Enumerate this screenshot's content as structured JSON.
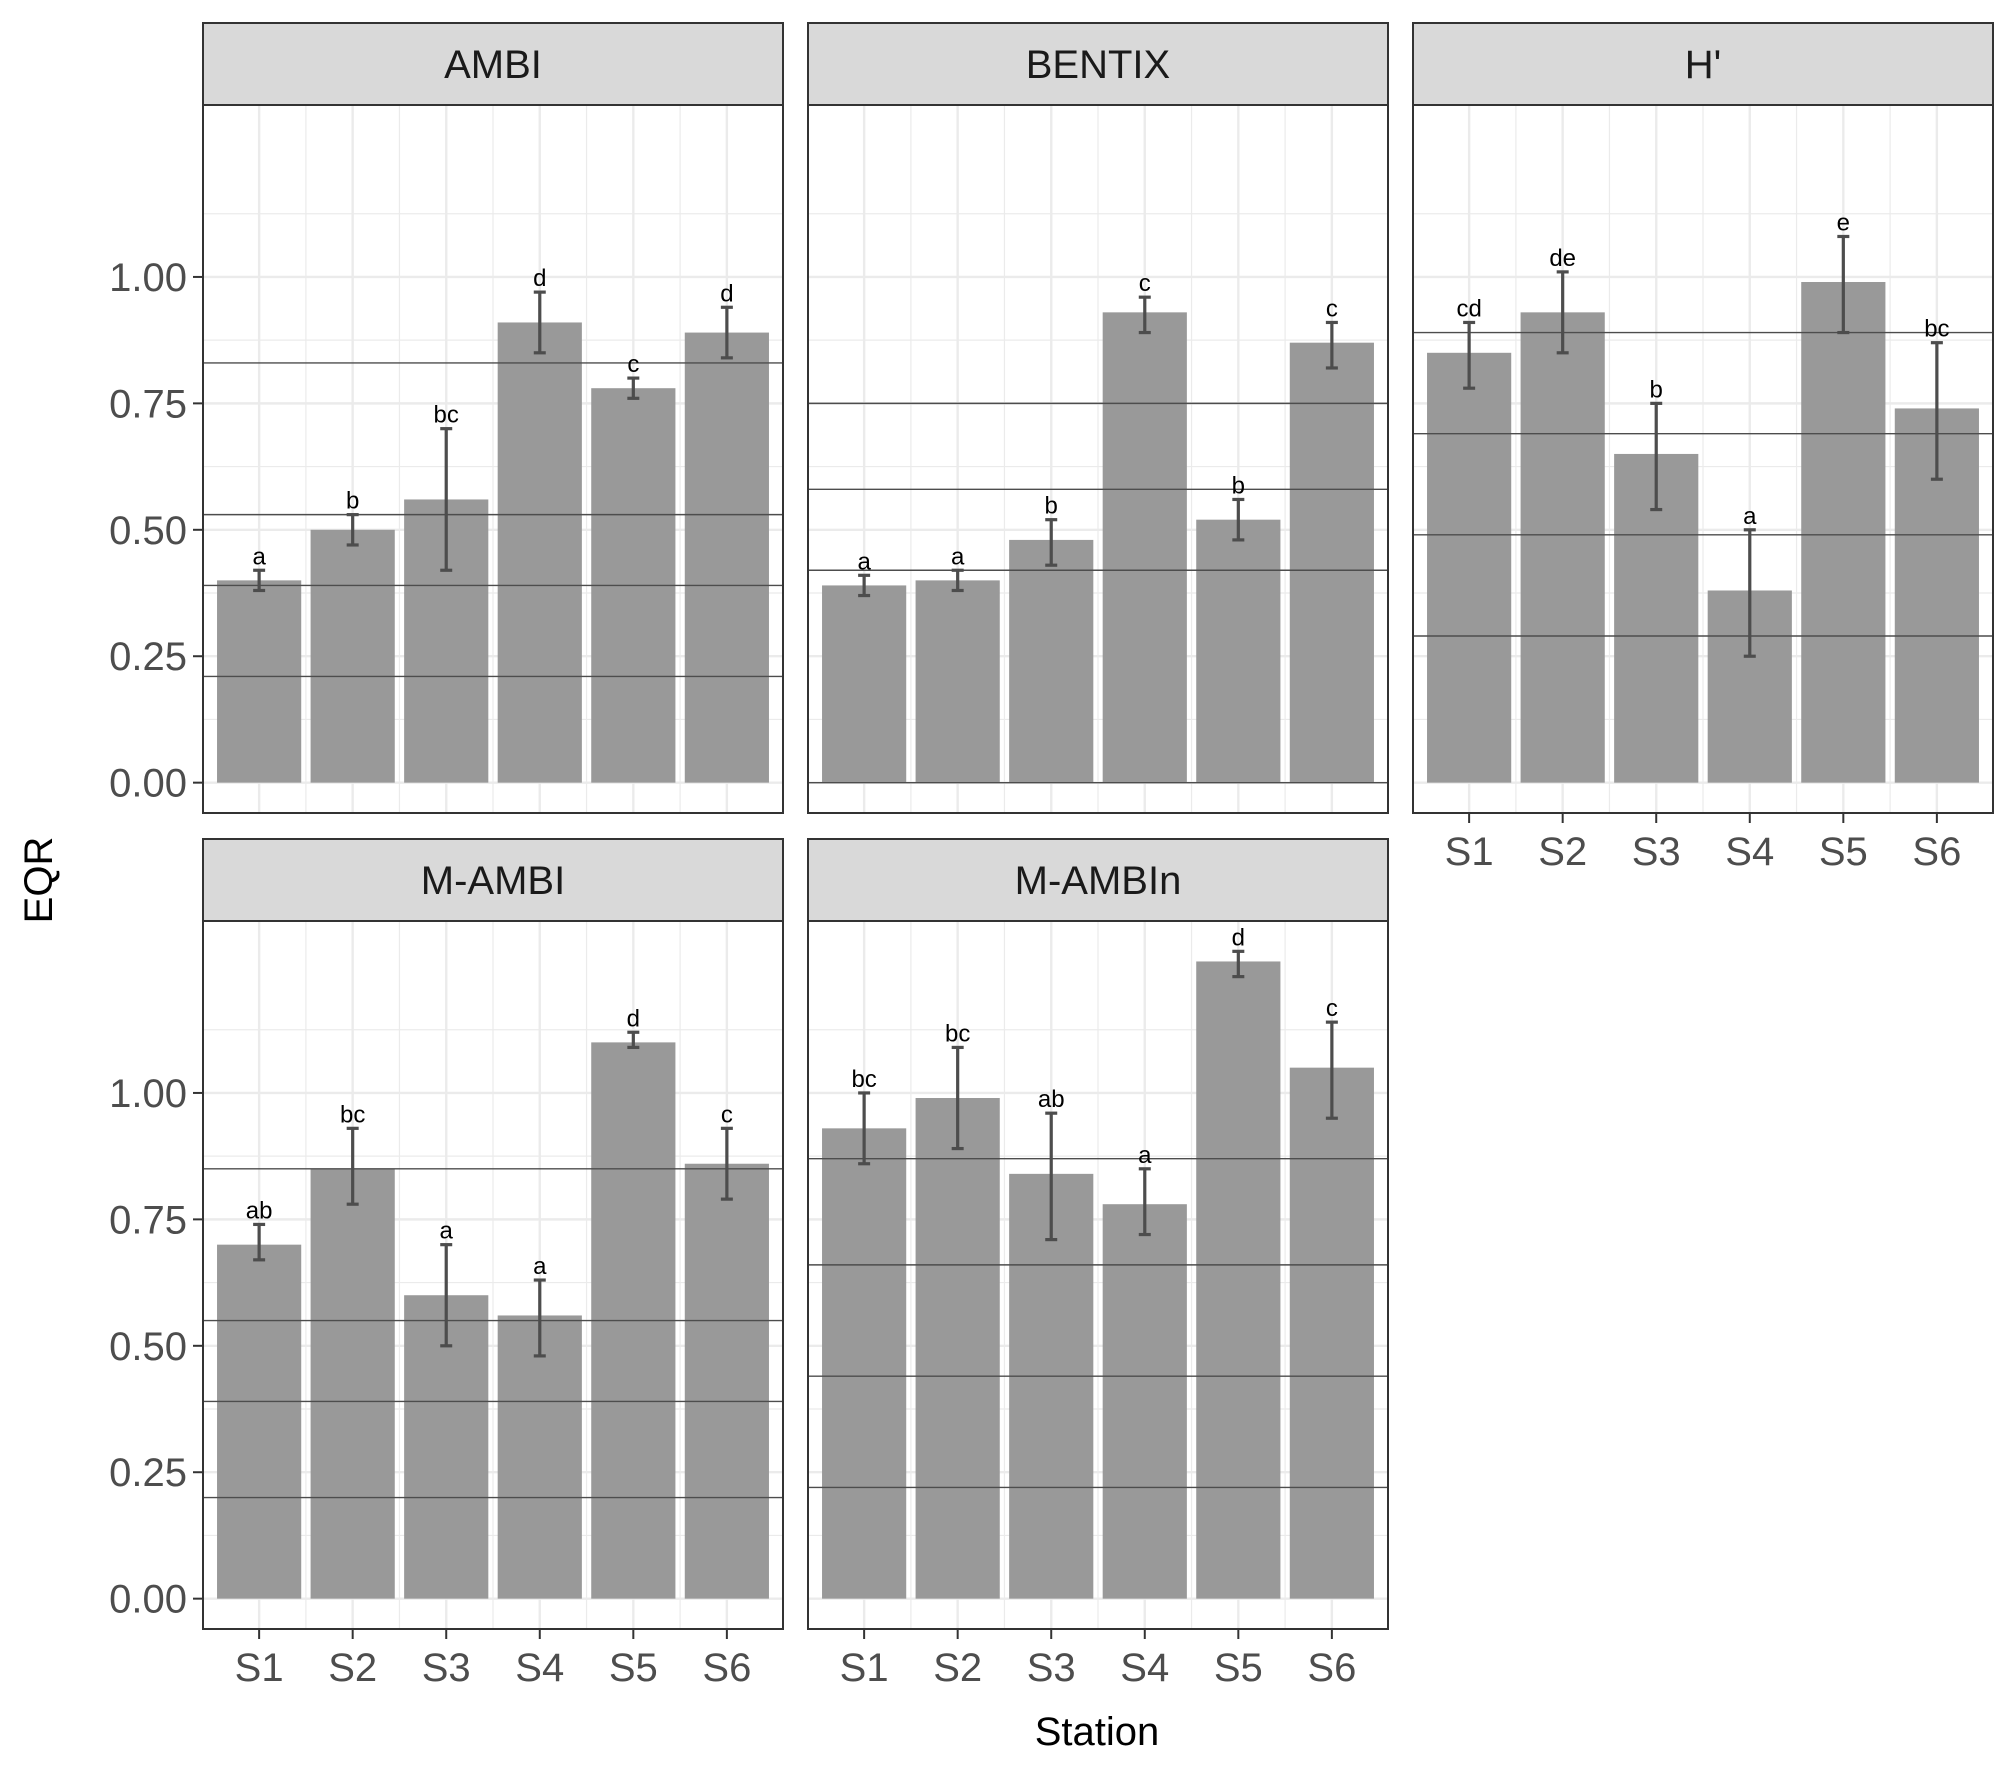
{
  "y_axis_title": "EQR",
  "x_axis_title": "Station",
  "chart_data": {
    "type": "bar",
    "facet_layout": "3 columns, 2 rows; panels share axes",
    "categories": [
      "S1",
      "S2",
      "S3",
      "S4",
      "S5",
      "S6"
    ],
    "xlabel": "Station",
    "ylabel": "EQR",
    "ylim": [
      -0.06,
      1.34
    ],
    "y_ticks": [
      0,
      0.25,
      0.5,
      0.75,
      1.0
    ],
    "y_tick_labels": [
      "0.00",
      "0.25",
      "0.50",
      "0.75",
      "1.00"
    ],
    "grid": true,
    "theme": "bw",
    "colors": {
      "bar": "#999999",
      "errorbar": "#4d4d4d",
      "strip": "#d9d9d9",
      "hline": "#4d4d4d",
      "grid": "#ebebeb"
    },
    "panels": [
      {
        "title": "AMBI",
        "values": [
          0.4,
          0.5,
          0.56,
          0.91,
          0.78,
          0.89
        ],
        "error_lower": [
          0.38,
          0.47,
          0.42,
          0.85,
          0.76,
          0.84
        ],
        "error_upper": [
          0.42,
          0.53,
          0.7,
          0.97,
          0.8,
          0.94
        ],
        "letters": [
          "a",
          "b",
          "bc",
          "d",
          "c",
          "d"
        ],
        "reference_lines": [
          0.21,
          0.39,
          0.53,
          0.83
        ]
      },
      {
        "title": "BENTIX",
        "values": [
          0.39,
          0.4,
          0.48,
          0.93,
          0.52,
          0.87
        ],
        "error_lower": [
          0.37,
          0.38,
          0.43,
          0.89,
          0.48,
          0.82
        ],
        "error_upper": [
          0.41,
          0.42,
          0.52,
          0.96,
          0.56,
          0.91
        ],
        "letters": [
          "a",
          "a",
          "b",
          "c",
          "b",
          "c"
        ],
        "reference_lines": [
          0.0,
          0.42,
          0.58,
          0.75
        ]
      },
      {
        "title": "H'",
        "values": [
          0.85,
          0.93,
          0.65,
          0.38,
          0.99,
          0.74
        ],
        "error_lower": [
          0.78,
          0.85,
          0.54,
          0.25,
          0.89,
          0.6
        ],
        "error_upper": [
          0.91,
          1.01,
          0.75,
          0.5,
          1.08,
          0.87
        ],
        "letters": [
          "cd",
          "de",
          "b",
          "a",
          "e",
          "bc"
        ],
        "reference_lines": [
          0.29,
          0.49,
          0.69,
          0.89
        ]
      },
      {
        "title": "M-AMBI",
        "values": [
          0.7,
          0.85,
          0.6,
          0.56,
          1.1,
          0.86
        ],
        "error_lower": [
          0.67,
          0.78,
          0.5,
          0.48,
          1.09,
          0.79
        ],
        "error_upper": [
          0.74,
          0.93,
          0.7,
          0.63,
          1.12,
          0.93
        ],
        "letters": [
          "ab",
          "bc",
          "a",
          "a",
          "d",
          "c"
        ],
        "reference_lines": [
          0.2,
          0.39,
          0.55,
          0.85
        ]
      },
      {
        "title": "M-AMBIn",
        "values": [
          0.93,
          0.99,
          0.84,
          0.78,
          1.26,
          1.05
        ],
        "error_lower": [
          0.86,
          0.89,
          0.71,
          0.72,
          1.23,
          0.95
        ],
        "error_upper": [
          1.0,
          1.09,
          0.96,
          0.85,
          1.28,
          1.14
        ],
        "letters": [
          "bc",
          "bc",
          "ab",
          "a",
          "d",
          "c"
        ],
        "reference_lines": [
          0.22,
          0.44,
          0.66,
          0.87
        ]
      }
    ]
  }
}
